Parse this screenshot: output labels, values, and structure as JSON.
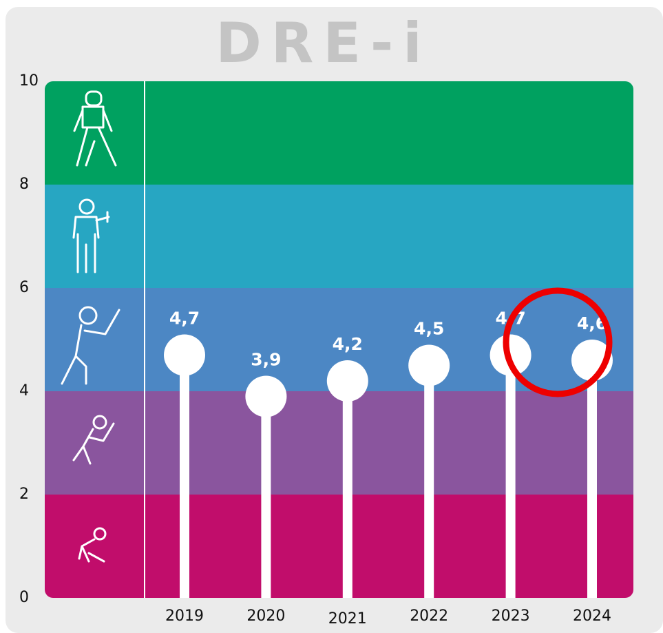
{
  "chart_data": {
    "type": "lollipop",
    "title": "DRE-i",
    "categories": [
      "2019",
      "2020",
      "2021",
      "2022",
      "2023",
      "2024"
    ],
    "values": [
      4.7,
      3.9,
      4.2,
      4.5,
      4.7,
      4.6
    ],
    "value_labels": [
      "4,7",
      "3,9",
      "4,2",
      "4,5",
      "4,7",
      "4,6"
    ],
    "color": "#ffffff",
    "ylim": [
      0,
      10
    ],
    "yticks": [
      0,
      2,
      4,
      6,
      8,
      10
    ],
    "bands": [
      {
        "from": 0,
        "to": 2,
        "color": "#c10d6b"
      },
      {
        "from": 2,
        "to": 4,
        "color": "#8a559e"
      },
      {
        "from": 4,
        "to": 6,
        "color": "#4c87c4"
      },
      {
        "from": 6,
        "to": 8,
        "color": "#27a6c2"
      },
      {
        "from": 8,
        "to": 10,
        "color": "#00a160"
      }
    ]
  }
}
